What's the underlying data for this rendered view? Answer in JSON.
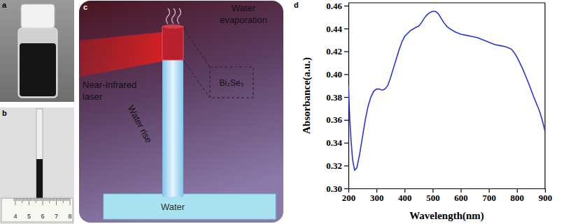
{
  "panels": {
    "a": {
      "label": "a"
    },
    "b": {
      "label": "b",
      "ruler_labels": [
        4,
        5,
        6,
        7,
        8
      ]
    },
    "c": {
      "label": "c",
      "texts": {
        "evaporation": [
          "Water",
          "evaporation"
        ],
        "laser": [
          "Near-Infrared",
          "laser"
        ],
        "material": "Bi₂Se₃",
        "rise": "Water rise",
        "bath": "Water"
      }
    },
    "d": {
      "label": "d"
    }
  },
  "chart_data": {
    "type": "line",
    "x_label": "Wavelength(nm)",
    "y_label": "Absorbance(a.u.)",
    "x": [
      200,
      205,
      210,
      215,
      222,
      230,
      240,
      250,
      260,
      270,
      280,
      290,
      300,
      310,
      320,
      330,
      340,
      350,
      360,
      370,
      380,
      390,
      400,
      420,
      440,
      450,
      460,
      470,
      480,
      490,
      500,
      510,
      520,
      530,
      540,
      550,
      560,
      580,
      600,
      620,
      640,
      660,
      680,
      700,
      720,
      740,
      760,
      780,
      790,
      800,
      820,
      840,
      860,
      880,
      890,
      900
    ],
    "values": [
      0.39,
      0.36,
      0.34,
      0.325,
      0.316,
      0.318,
      0.33,
      0.345,
      0.36,
      0.372,
      0.38,
      0.385,
      0.387,
      0.387,
      0.386,
      0.387,
      0.39,
      0.397,
      0.405,
      0.413,
      0.421,
      0.428,
      0.433,
      0.438,
      0.441,
      0.442,
      0.445,
      0.449,
      0.452,
      0.454,
      0.455,
      0.455,
      0.453,
      0.449,
      0.445,
      0.442,
      0.44,
      0.437,
      0.435,
      0.434,
      0.433,
      0.432,
      0.43,
      0.428,
      0.426,
      0.425,
      0.424,
      0.422,
      0.419,
      0.415,
      0.405,
      0.393,
      0.38,
      0.368,
      0.36,
      0.35
    ],
    "color": "#2a33d8",
    "marker": "none",
    "line_style": "solid",
    "grid": false,
    "xlim": [
      200,
      900
    ],
    "ylim": [
      0.3,
      0.4625
    ],
    "xticks": [
      200,
      300,
      400,
      500,
      600,
      700,
      800,
      900
    ],
    "yticks": [
      {
        "value": 0.3,
        "label": "0.30"
      },
      {
        "value": 0.32,
        "label": "0.32"
      },
      {
        "value": 0.34,
        "label": "0.34"
      },
      {
        "value": 0.36,
        "label": "0.36"
      },
      {
        "value": 0.38,
        "label": "0.38"
      },
      {
        "value": 0.4,
        "label": "0.40"
      },
      {
        "value": 0.42,
        "label": "0.42"
      },
      {
        "value": 0.44,
        "label": "0.44"
      },
      {
        "value": 0.46,
        "label": "0.46"
      }
    ]
  }
}
